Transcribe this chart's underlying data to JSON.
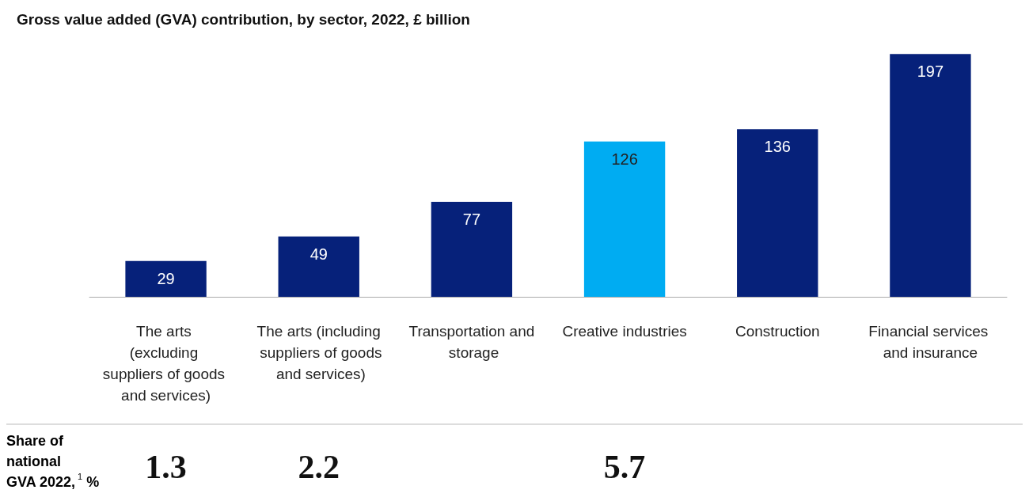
{
  "chart_data": {
    "type": "bar",
    "title": "Gross value added (GVA) contribution, by sector, 2022, £ billion",
    "categories": [
      "The arts (excluding suppliers of goods and services)",
      "The arts (including suppliers of goods and services)",
      "Transportation and storage",
      "Creative industries",
      "Construction",
      "Financial services and insurance"
    ],
    "values": [
      29,
      49,
      77,
      126,
      136,
      197
    ],
    "colors": [
      "#06217a",
      "#06217a",
      "#06217a",
      "#00acf2",
      "#06217a",
      "#06217a"
    ],
    "data_labels": true,
    "annotations": [
      "Share of national GVA 2022,$^{1}$ %",
      "1.3",
      "2.2",
      "5.7"
    ]
  }
}
